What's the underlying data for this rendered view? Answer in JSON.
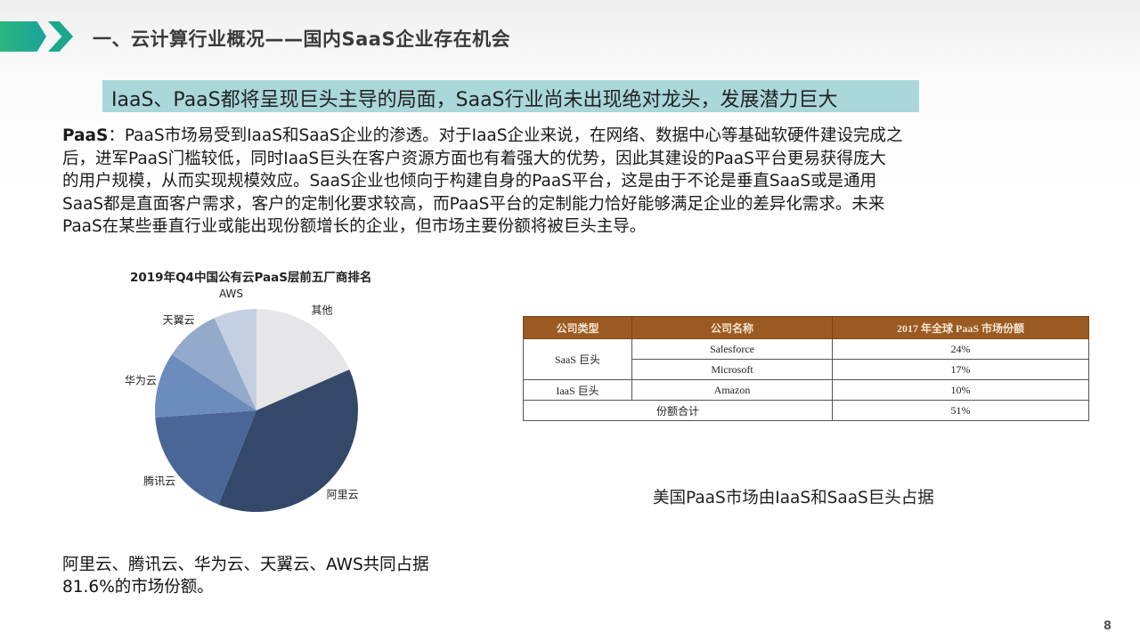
{
  "header": {
    "title": "一、云计算行业概况——国内SaaS企业存在机会",
    "accent_colors": [
      "#2bb57f",
      "#1aa78a"
    ]
  },
  "banner": {
    "text": "IaaS、PaaS都将呈现巨头主导的局面，SaaS行业尚未出现绝对龙头，发展潜力巨大",
    "background": "#a9d7da"
  },
  "body": {
    "lead": "PaaS",
    "lines": [
      "：PaaS市场易受到IaaS和SaaS企业的渗透。对于IaaS企业来说，在网络、数据中心等基础软硬件建设完成之",
      "后，进军PaaS门槛较低，同时IaaS巨头在客户资源方面也有着强大的优势，因此其建设的PaaS平台更易获得庞大",
      "的用户规模，从而实现规模效应。SaaS企业也倾向于构建自身的PaaS平台，这是由于不论是垂直SaaS或是通用",
      "SaaS都是直面客户需求，客户的定制化要求较高，而PaaS平台的定制能力恰好能够满足企业的差异化需求。未来",
      "PaaS在某些垂直行业或能出现份额增长的企业，但市场主要份额将被巨头主导。"
    ]
  },
  "chart_data": {
    "type": "pie",
    "title": "2019年Q4中国公有云PaaS层前五厂商排名",
    "start": "top",
    "direction": "clockwise",
    "slices": [
      {
        "label": "其他",
        "value": 18.4,
        "color": "#e6e6e8"
      },
      {
        "label": "阿里云",
        "value": 37.7,
        "color": "#34496a"
      },
      {
        "label": "腾讯云",
        "value": 17.8,
        "color": "#4a6697"
      },
      {
        "label": "华为云",
        "value": 10.4,
        "color": "#6b8cbd"
      },
      {
        "label": "天翼云",
        "value": 8.9,
        "color": "#94aacb"
      },
      {
        "label": "AWS",
        "value": 6.8,
        "color": "#c4d0e2"
      }
    ]
  },
  "table": {
    "header": [
      "公司类型",
      "公司名称",
      "2017 年全球 PaaS 市场份额"
    ],
    "groups": [
      {
        "type": "SaaS 巨头",
        "rows": [
          {
            "name": "Salesforce",
            "share": "24%"
          },
          {
            "name": "Microsoft",
            "share": "17%"
          }
        ]
      },
      {
        "type": "IaaS 巨头",
        "rows": [
          {
            "name": "Amazon",
            "share": "10%"
          }
        ]
      }
    ],
    "total_label": "份额合计",
    "total_share": "51%",
    "header_color": "#9b5a22"
  },
  "captions": {
    "right": "美国PaaS市场由IaaS和SaaS巨头占据",
    "left_lines": [
      "阿里云、腾讯云、华为云、天翼云、AWS共同占据",
      "81.6%的市场份额。"
    ]
  },
  "page_number": "8"
}
